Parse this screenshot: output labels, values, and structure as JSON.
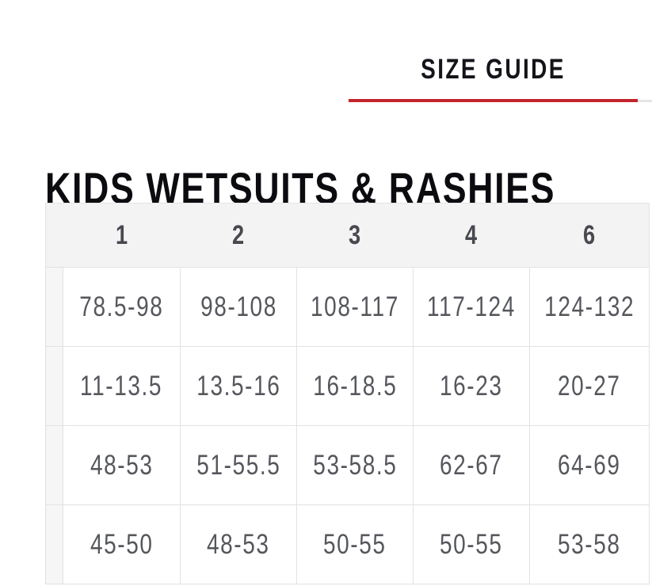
{
  "tabs": {
    "active_label": "SIZE GUIDE"
  },
  "page": {
    "title": "KIDS WETSUITS & RASHIES"
  },
  "colors": {
    "accent_red": "#c4242c",
    "tab_divider_gray": "#e5e5e5",
    "table_header_bg": "#f3f3f3",
    "cell_text_gray": "#55575c"
  },
  "table": {
    "columns": [
      "1",
      "2",
      "3",
      "4",
      "6"
    ],
    "rows": [
      [
        "78.5-98",
        "98-108",
        "108-117",
        "117-124",
        "124-132"
      ],
      [
        "11-13.5",
        "13.5-16",
        "16-18.5",
        "16-23",
        "20-27"
      ],
      [
        "48-53",
        "51-55.5",
        "53-58.5",
        "62-67",
        "64-69"
      ],
      [
        "45-50",
        "48-53",
        "50-55",
        "50-55",
        "53-58"
      ]
    ]
  }
}
